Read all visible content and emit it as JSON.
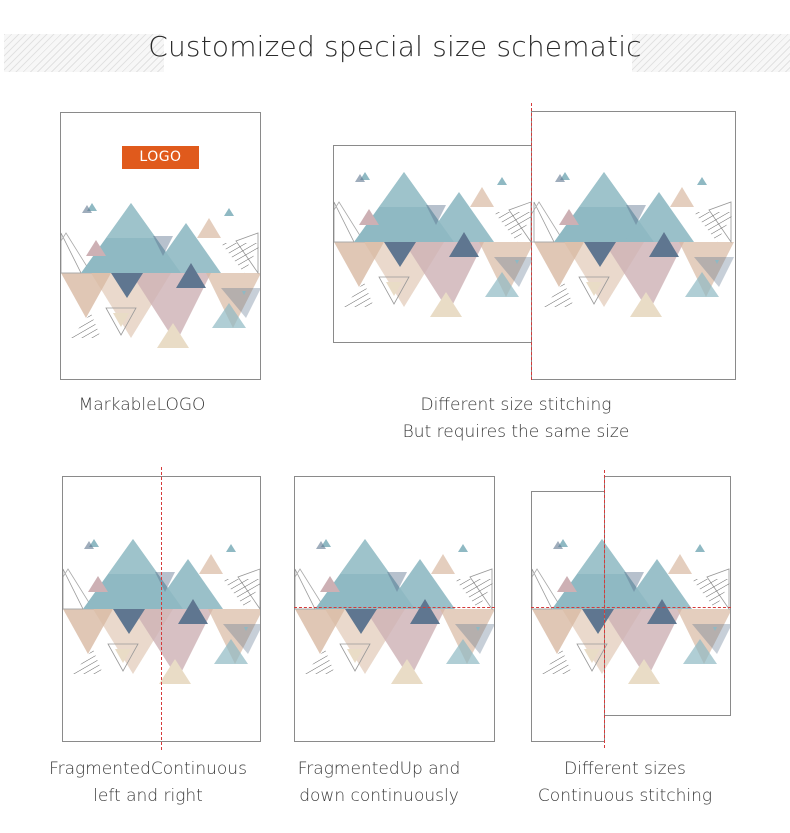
{
  "header": {
    "title": "Customized special size schematic"
  },
  "logo": {
    "label": "LOGO"
  },
  "captions": {
    "markable": "MarkableLOGO",
    "different_size_line1": "Different size stitching",
    "different_size_line2": "But requires the same size",
    "fragmented_lr_line1": "FragmentedContinuous",
    "fragmented_lr_line2": "left and right",
    "fragmented_ud_line1": "FragmentedUp and",
    "fragmented_ud_line2": "down continuously",
    "different_sizes_line1": "Different sizes",
    "different_sizes_line2": "Continuous stitching"
  },
  "colors": {
    "teal": "#8fb9c3",
    "slate": "#5f7690",
    "tan": "#d8b9a3",
    "mauve": "#cdb0b4",
    "beige": "#e9dcc6",
    "logo_bg": "#e05a1c",
    "guide_line": "#d43a3a"
  }
}
